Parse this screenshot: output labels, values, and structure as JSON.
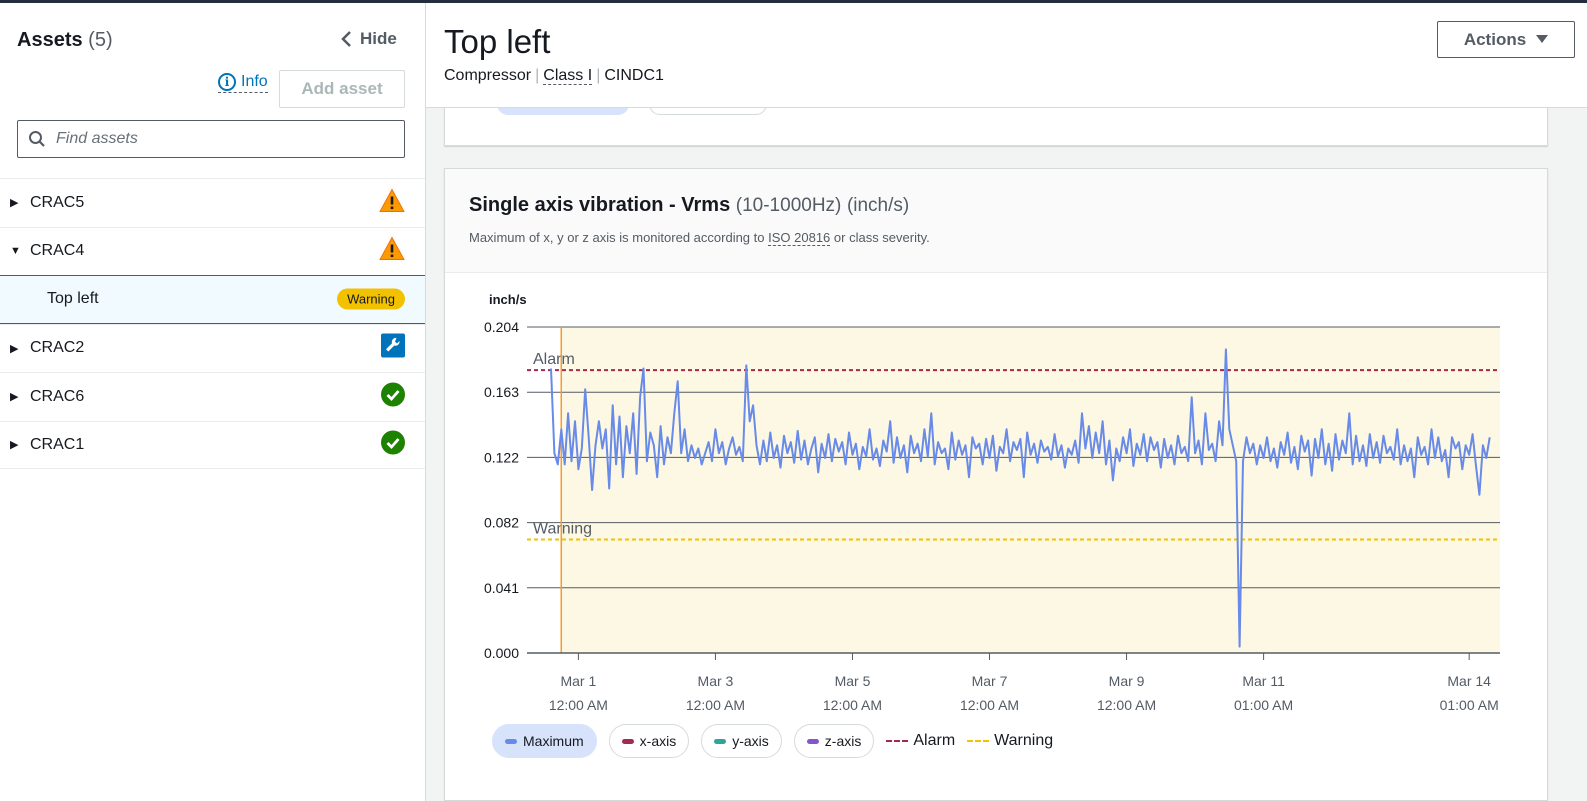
{
  "sidebar": {
    "title": "Assets",
    "count": "(5)",
    "hide_label": "Hide",
    "info_label": "Info",
    "add_asset_label": "Add asset",
    "search_placeholder": "Find assets",
    "items": [
      {
        "label": "CRAC5",
        "expanded": false,
        "status": "warning-icon"
      },
      {
        "label": "CRAC4",
        "expanded": true,
        "status": "warning-icon"
      },
      {
        "label": "Top left",
        "child": true,
        "badge": "Warning"
      },
      {
        "label": "CRAC2",
        "expanded": false,
        "status": "wrench-icon"
      },
      {
        "label": "CRAC6",
        "expanded": false,
        "status": "check-circle-icon"
      },
      {
        "label": "CRAC1",
        "expanded": false,
        "status": "check-circle-icon"
      }
    ]
  },
  "header": {
    "title": "Top left",
    "subtitle_type": "Compressor",
    "subtitle_class": "Class I",
    "subtitle_id": "CINDC1",
    "actions_label": "Actions"
  },
  "card": {
    "title": "Single axis vibration - Vrms",
    "title_range": "(10-1000Hz)",
    "title_unit": "(inch/s)",
    "desc_prefix": "Maximum of x, y or z axis is monitored according to",
    "desc_link": "ISO 20816",
    "desc_suffix": "or class severity."
  },
  "colors": {
    "series": "#688ae8",
    "alarm": "#a32952",
    "warning": "#f2c200",
    "band": "#fdf8e3",
    "accent": "#0073bb"
  },
  "chart_data": {
    "type": "line",
    "ylabel": "inch/s",
    "ylim": [
      0,
      0.204
    ],
    "yticks": [
      "0.204",
      "0.163",
      "0.122",
      "0.082",
      "0.041",
      "0.000"
    ],
    "xticks": [
      {
        "day": 1,
        "l1": "Mar 1",
        "l2": "12:00 AM"
      },
      {
        "day": 3,
        "l1": "Mar 3",
        "l2": "12:00 AM"
      },
      {
        "day": 5,
        "l1": "Mar 5",
        "l2": "12:00 AM"
      },
      {
        "day": 7,
        "l1": "Mar 7",
        "l2": "12:00 AM"
      },
      {
        "day": 9,
        "l1": "Mar 9",
        "l2": "12:00 AM"
      },
      {
        "day": 11,
        "l1": "Mar 11",
        "l2": "01:00 AM"
      },
      {
        "day": 14,
        "l1": "Mar 14",
        "l2": "01:00 AM"
      }
    ],
    "thresholds": [
      {
        "name": "Alarm",
        "value": 0.177
      },
      {
        "name": "Warning",
        "value": 0.071
      }
    ],
    "series": [
      {
        "name": "Maximum",
        "points": [
          [
            0.6,
            0.178
          ],
          [
            0.65,
            0.125
          ],
          [
            0.7,
            0.118
          ],
          [
            0.75,
            0.14
          ],
          [
            0.8,
            0.118
          ],
          [
            0.85,
            0.15
          ],
          [
            0.9,
            0.12
          ],
          [
            0.95,
            0.145
          ],
          [
            1.0,
            0.115
          ],
          [
            1.05,
            0.128
          ],
          [
            1.1,
            0.165
          ],
          [
            1.15,
            0.135
          ],
          [
            1.2,
            0.102
          ],
          [
            1.25,
            0.13
          ],
          [
            1.3,
            0.145
          ],
          [
            1.35,
            0.128
          ],
          [
            1.4,
            0.14
          ],
          [
            1.45,
            0.103
          ],
          [
            1.5,
            0.155
          ],
          [
            1.55,
            0.118
          ],
          [
            1.6,
            0.148
          ],
          [
            1.65,
            0.11
          ],
          [
            1.7,
            0.142
          ],
          [
            1.75,
            0.125
          ],
          [
            1.8,
            0.15
          ],
          [
            1.85,
            0.112
          ],
          [
            1.9,
            0.16
          ],
          [
            1.95,
            0.178
          ],
          [
            2.0,
            0.12
          ],
          [
            2.05,
            0.138
          ],
          [
            2.1,
            0.13
          ],
          [
            2.15,
            0.11
          ],
          [
            2.2,
            0.142
          ],
          [
            2.25,
            0.118
          ],
          [
            2.3,
            0.135
          ],
          [
            2.35,
            0.125
          ],
          [
            2.4,
            0.15
          ],
          [
            2.45,
            0.17
          ],
          [
            2.5,
            0.125
          ],
          [
            2.55,
            0.14
          ],
          [
            2.6,
            0.12
          ],
          [
            2.65,
            0.13
          ],
          [
            2.7,
            0.122
          ],
          [
            2.75,
            0.128
          ],
          [
            2.8,
            0.118
          ],
          [
            2.85,
            0.125
          ],
          [
            2.9,
            0.132
          ],
          [
            2.95,
            0.12
          ],
          [
            3.0,
            0.14
          ],
          [
            3.05,
            0.125
          ],
          [
            3.1,
            0.132
          ],
          [
            3.15,
            0.118
          ],
          [
            3.2,
            0.128
          ],
          [
            3.25,
            0.135
          ],
          [
            3.3,
            0.124
          ],
          [
            3.35,
            0.129
          ],
          [
            3.4,
            0.12
          ],
          [
            3.45,
            0.18
          ],
          [
            3.5,
            0.145
          ],
          [
            3.55,
            0.155
          ],
          [
            3.6,
            0.13
          ],
          [
            3.65,
            0.118
          ],
          [
            3.7,
            0.133
          ],
          [
            3.75,
            0.12
          ],
          [
            3.8,
            0.138
          ],
          [
            3.85,
            0.122
          ],
          [
            3.9,
            0.13
          ],
          [
            3.95,
            0.116
          ],
          [
            4.0,
            0.136
          ],
          [
            4.05,
            0.125
          ],
          [
            4.1,
            0.132
          ],
          [
            4.15,
            0.119
          ],
          [
            4.2,
            0.139
          ],
          [
            4.25,
            0.121
          ],
          [
            4.3,
            0.133
          ],
          [
            4.35,
            0.118
          ],
          [
            4.4,
            0.128
          ],
          [
            4.45,
            0.135
          ],
          [
            4.5,
            0.113
          ],
          [
            4.55,
            0.131
          ],
          [
            4.6,
            0.122
          ],
          [
            4.65,
            0.137
          ],
          [
            4.7,
            0.12
          ],
          [
            4.75,
            0.134
          ],
          [
            4.8,
            0.126
          ],
          [
            4.85,
            0.132
          ],
          [
            4.9,
            0.118
          ],
          [
            4.95,
            0.138
          ],
          [
            5.0,
            0.124
          ],
          [
            5.05,
            0.131
          ],
          [
            5.1,
            0.115
          ],
          [
            5.15,
            0.129
          ],
          [
            5.2,
            0.123
          ],
          [
            5.25,
            0.14
          ],
          [
            5.3,
            0.121
          ],
          [
            5.35,
            0.128
          ],
          [
            5.4,
            0.117
          ],
          [
            5.45,
            0.133
          ],
          [
            5.5,
            0.126
          ],
          [
            5.55,
            0.145
          ],
          [
            5.6,
            0.119
          ],
          [
            5.65,
            0.135
          ],
          [
            5.7,
            0.122
          ],
          [
            5.75,
            0.13
          ],
          [
            5.8,
            0.113
          ],
          [
            5.85,
            0.136
          ],
          [
            5.9,
            0.125
          ],
          [
            5.95,
            0.131
          ],
          [
            6.0,
            0.12
          ],
          [
            6.05,
            0.14
          ],
          [
            6.1,
            0.123
          ],
          [
            6.15,
            0.15
          ],
          [
            6.2,
            0.118
          ],
          [
            6.25,
            0.132
          ],
          [
            6.3,
            0.125
          ],
          [
            6.35,
            0.128
          ],
          [
            6.4,
            0.115
          ],
          [
            6.45,
            0.138
          ],
          [
            6.5,
            0.121
          ],
          [
            6.55,
            0.133
          ],
          [
            6.6,
            0.124
          ],
          [
            6.65,
            0.13
          ],
          [
            6.7,
            0.11
          ],
          [
            6.75,
            0.135
          ],
          [
            6.8,
            0.128
          ],
          [
            6.85,
            0.131
          ],
          [
            6.9,
            0.118
          ],
          [
            6.95,
            0.134
          ],
          [
            7.0,
            0.122
          ],
          [
            7.05,
            0.136
          ],
          [
            7.1,
            0.114
          ],
          [
            7.15,
            0.129
          ],
          [
            7.2,
            0.125
          ],
          [
            7.25,
            0.14
          ],
          [
            7.3,
            0.12
          ],
          [
            7.35,
            0.132
          ],
          [
            7.4,
            0.127
          ],
          [
            7.45,
            0.134
          ],
          [
            7.5,
            0.11
          ],
          [
            7.55,
            0.138
          ],
          [
            7.6,
            0.124
          ],
          [
            7.65,
            0.131
          ],
          [
            7.7,
            0.119
          ],
          [
            7.75,
            0.133
          ],
          [
            7.8,
            0.126
          ],
          [
            7.85,
            0.129
          ],
          [
            7.9,
            0.121
          ],
          [
            7.95,
            0.137
          ],
          [
            8.0,
            0.123
          ],
          [
            8.05,
            0.13
          ],
          [
            8.1,
            0.116
          ],
          [
            8.15,
            0.128
          ],
          [
            8.2,
            0.124
          ],
          [
            8.25,
            0.133
          ],
          [
            8.3,
            0.119
          ],
          [
            8.35,
            0.15
          ],
          [
            8.4,
            0.128
          ],
          [
            8.45,
            0.142
          ],
          [
            8.5,
            0.122
          ],
          [
            8.55,
            0.138
          ],
          [
            8.6,
            0.125
          ],
          [
            8.65,
            0.145
          ],
          [
            8.7,
            0.118
          ],
          [
            8.75,
            0.133
          ],
          [
            8.8,
            0.108
          ],
          [
            8.85,
            0.128
          ],
          [
            8.9,
            0.12
          ],
          [
            8.95,
            0.135
          ],
          [
            9.0,
            0.125
          ],
          [
            9.05,
            0.14
          ],
          [
            9.1,
            0.117
          ],
          [
            9.15,
            0.131
          ],
          [
            9.2,
            0.124
          ],
          [
            9.25,
            0.137
          ],
          [
            9.3,
            0.12
          ],
          [
            9.35,
            0.135
          ],
          [
            9.4,
            0.127
          ],
          [
            9.45,
            0.132
          ],
          [
            9.5,
            0.116
          ],
          [
            9.55,
            0.134
          ],
          [
            9.6,
            0.122
          ],
          [
            9.65,
            0.13
          ],
          [
            9.7,
            0.118
          ],
          [
            9.75,
            0.136
          ],
          [
            9.8,
            0.125
          ],
          [
            9.85,
            0.129
          ],
          [
            9.9,
            0.12
          ],
          [
            9.95,
            0.16
          ],
          [
            10.0,
            0.125
          ],
          [
            10.05,
            0.133
          ],
          [
            10.1,
            0.118
          ],
          [
            10.15,
            0.15
          ],
          [
            10.2,
            0.127
          ],
          [
            10.25,
            0.131
          ],
          [
            10.3,
            0.12
          ],
          [
            10.35,
            0.145
          ],
          [
            10.4,
            0.13
          ],
          [
            10.45,
            0.19
          ],
          [
            10.5,
            0.14
          ],
          [
            10.55,
            0.13
          ],
          [
            10.6,
            0.12
          ],
          [
            10.65,
            0.004
          ],
          [
            10.7,
            0.12
          ],
          [
            10.75,
            0.135
          ],
          [
            10.8,
            0.125
          ],
          [
            10.85,
            0.131
          ],
          [
            10.9,
            0.118
          ],
          [
            10.95,
            0.13
          ],
          [
            11.0,
            0.122
          ],
          [
            11.05,
            0.135
          ],
          [
            11.1,
            0.12
          ],
          [
            11.15,
            0.128
          ],
          [
            11.2,
            0.116
          ],
          [
            11.25,
            0.132
          ],
          [
            11.3,
            0.124
          ],
          [
            11.35,
            0.138
          ],
          [
            11.4,
            0.119
          ],
          [
            11.45,
            0.129
          ],
          [
            11.5,
            0.115
          ],
          [
            11.55,
            0.136
          ],
          [
            11.6,
            0.126
          ],
          [
            11.65,
            0.133
          ],
          [
            11.7,
            0.111
          ],
          [
            11.75,
            0.134
          ],
          [
            11.8,
            0.122
          ],
          [
            11.85,
            0.14
          ],
          [
            11.9,
            0.118
          ],
          [
            11.95,
            0.131
          ],
          [
            12.0,
            0.114
          ],
          [
            12.05,
            0.137
          ],
          [
            12.1,
            0.121
          ],
          [
            12.15,
            0.133
          ],
          [
            12.2,
            0.125
          ],
          [
            12.25,
            0.15
          ],
          [
            12.3,
            0.118
          ],
          [
            12.35,
            0.136
          ],
          [
            12.4,
            0.12
          ],
          [
            12.45,
            0.13
          ],
          [
            12.5,
            0.117
          ],
          [
            12.55,
            0.137
          ],
          [
            12.6,
            0.122
          ],
          [
            12.65,
            0.132
          ],
          [
            12.7,
            0.119
          ],
          [
            12.75,
            0.136
          ],
          [
            12.8,
            0.125
          ],
          [
            12.85,
            0.129
          ],
          [
            12.9,
            0.121
          ],
          [
            12.95,
            0.14
          ],
          [
            13.0,
            0.118
          ],
          [
            13.05,
            0.13
          ],
          [
            13.1,
            0.12
          ],
          [
            13.15,
            0.128
          ],
          [
            13.2,
            0.11
          ],
          [
            13.25,
            0.135
          ],
          [
            13.3,
            0.124
          ],
          [
            13.35,
            0.129
          ],
          [
            13.4,
            0.118
          ],
          [
            13.45,
            0.14
          ],
          [
            13.5,
            0.122
          ],
          [
            13.55,
            0.135
          ],
          [
            13.6,
            0.12
          ],
          [
            13.65,
            0.127
          ],
          [
            13.7,
            0.11
          ],
          [
            13.75,
            0.135
          ],
          [
            13.8,
            0.128
          ],
          [
            13.85,
            0.132
          ],
          [
            13.9,
            0.115
          ],
          [
            13.95,
            0.13
          ],
          [
            14.0,
            0.124
          ],
          [
            14.05,
            0.137
          ],
          [
            14.1,
            0.117
          ],
          [
            14.15,
            0.099
          ],
          [
            14.2,
            0.13
          ],
          [
            14.25,
            0.122
          ],
          [
            14.3,
            0.135
          ]
        ]
      }
    ],
    "band": {
      "from": 0.75,
      "to": 14.45
    },
    "marker_day": 0.75,
    "xlim": [
      0.25,
      14.45
    ]
  },
  "legend": [
    {
      "label": "Maximum",
      "type": "pill",
      "color": "#688ae8",
      "active": true
    },
    {
      "label": "x-axis",
      "type": "pill",
      "color": "#a32952",
      "active": false
    },
    {
      "label": "y-axis",
      "type": "pill",
      "color": "#2ea597",
      "active": false
    },
    {
      "label": "z-axis",
      "type": "pill",
      "color": "#8456ce",
      "active": false
    },
    {
      "label": "Alarm",
      "type": "line",
      "color": "#a32952"
    },
    {
      "label": "Warning",
      "type": "line",
      "color": "#f2c200"
    }
  ]
}
